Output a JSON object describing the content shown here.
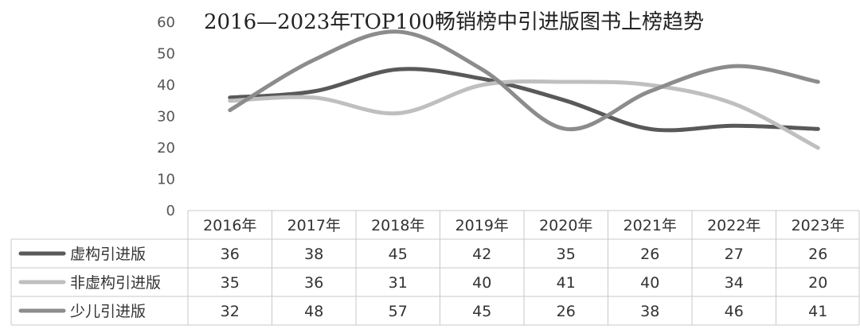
{
  "chart_data": {
    "type": "line",
    "title": "2016—2023年TOP100畅销榜中引进版图书上榜趋势",
    "categories": [
      "2016年",
      "2017年",
      "2018年",
      "2019年",
      "2020年",
      "2021年",
      "2022年",
      "2023年"
    ],
    "ylim": [
      0,
      60
    ],
    "yticks": [
      "0",
      "10",
      "20",
      "30",
      "40",
      "50",
      "60"
    ],
    "grid": false,
    "legend": "data-table-left",
    "series": [
      {
        "name": "虚构引进版",
        "values": [
          36,
          38,
          45,
          42,
          35,
          26,
          27,
          26
        ],
        "color": "#595959"
      },
      {
        "name": "非虚构引进版",
        "values": [
          35,
          36,
          31,
          40,
          41,
          40,
          34,
          20
        ],
        "color": "#bfbfbf"
      },
      {
        "name": "少儿引进版",
        "values": [
          32,
          48,
          57,
          45,
          26,
          38,
          46,
          41
        ],
        "color": "#8c8c8c"
      }
    ]
  }
}
